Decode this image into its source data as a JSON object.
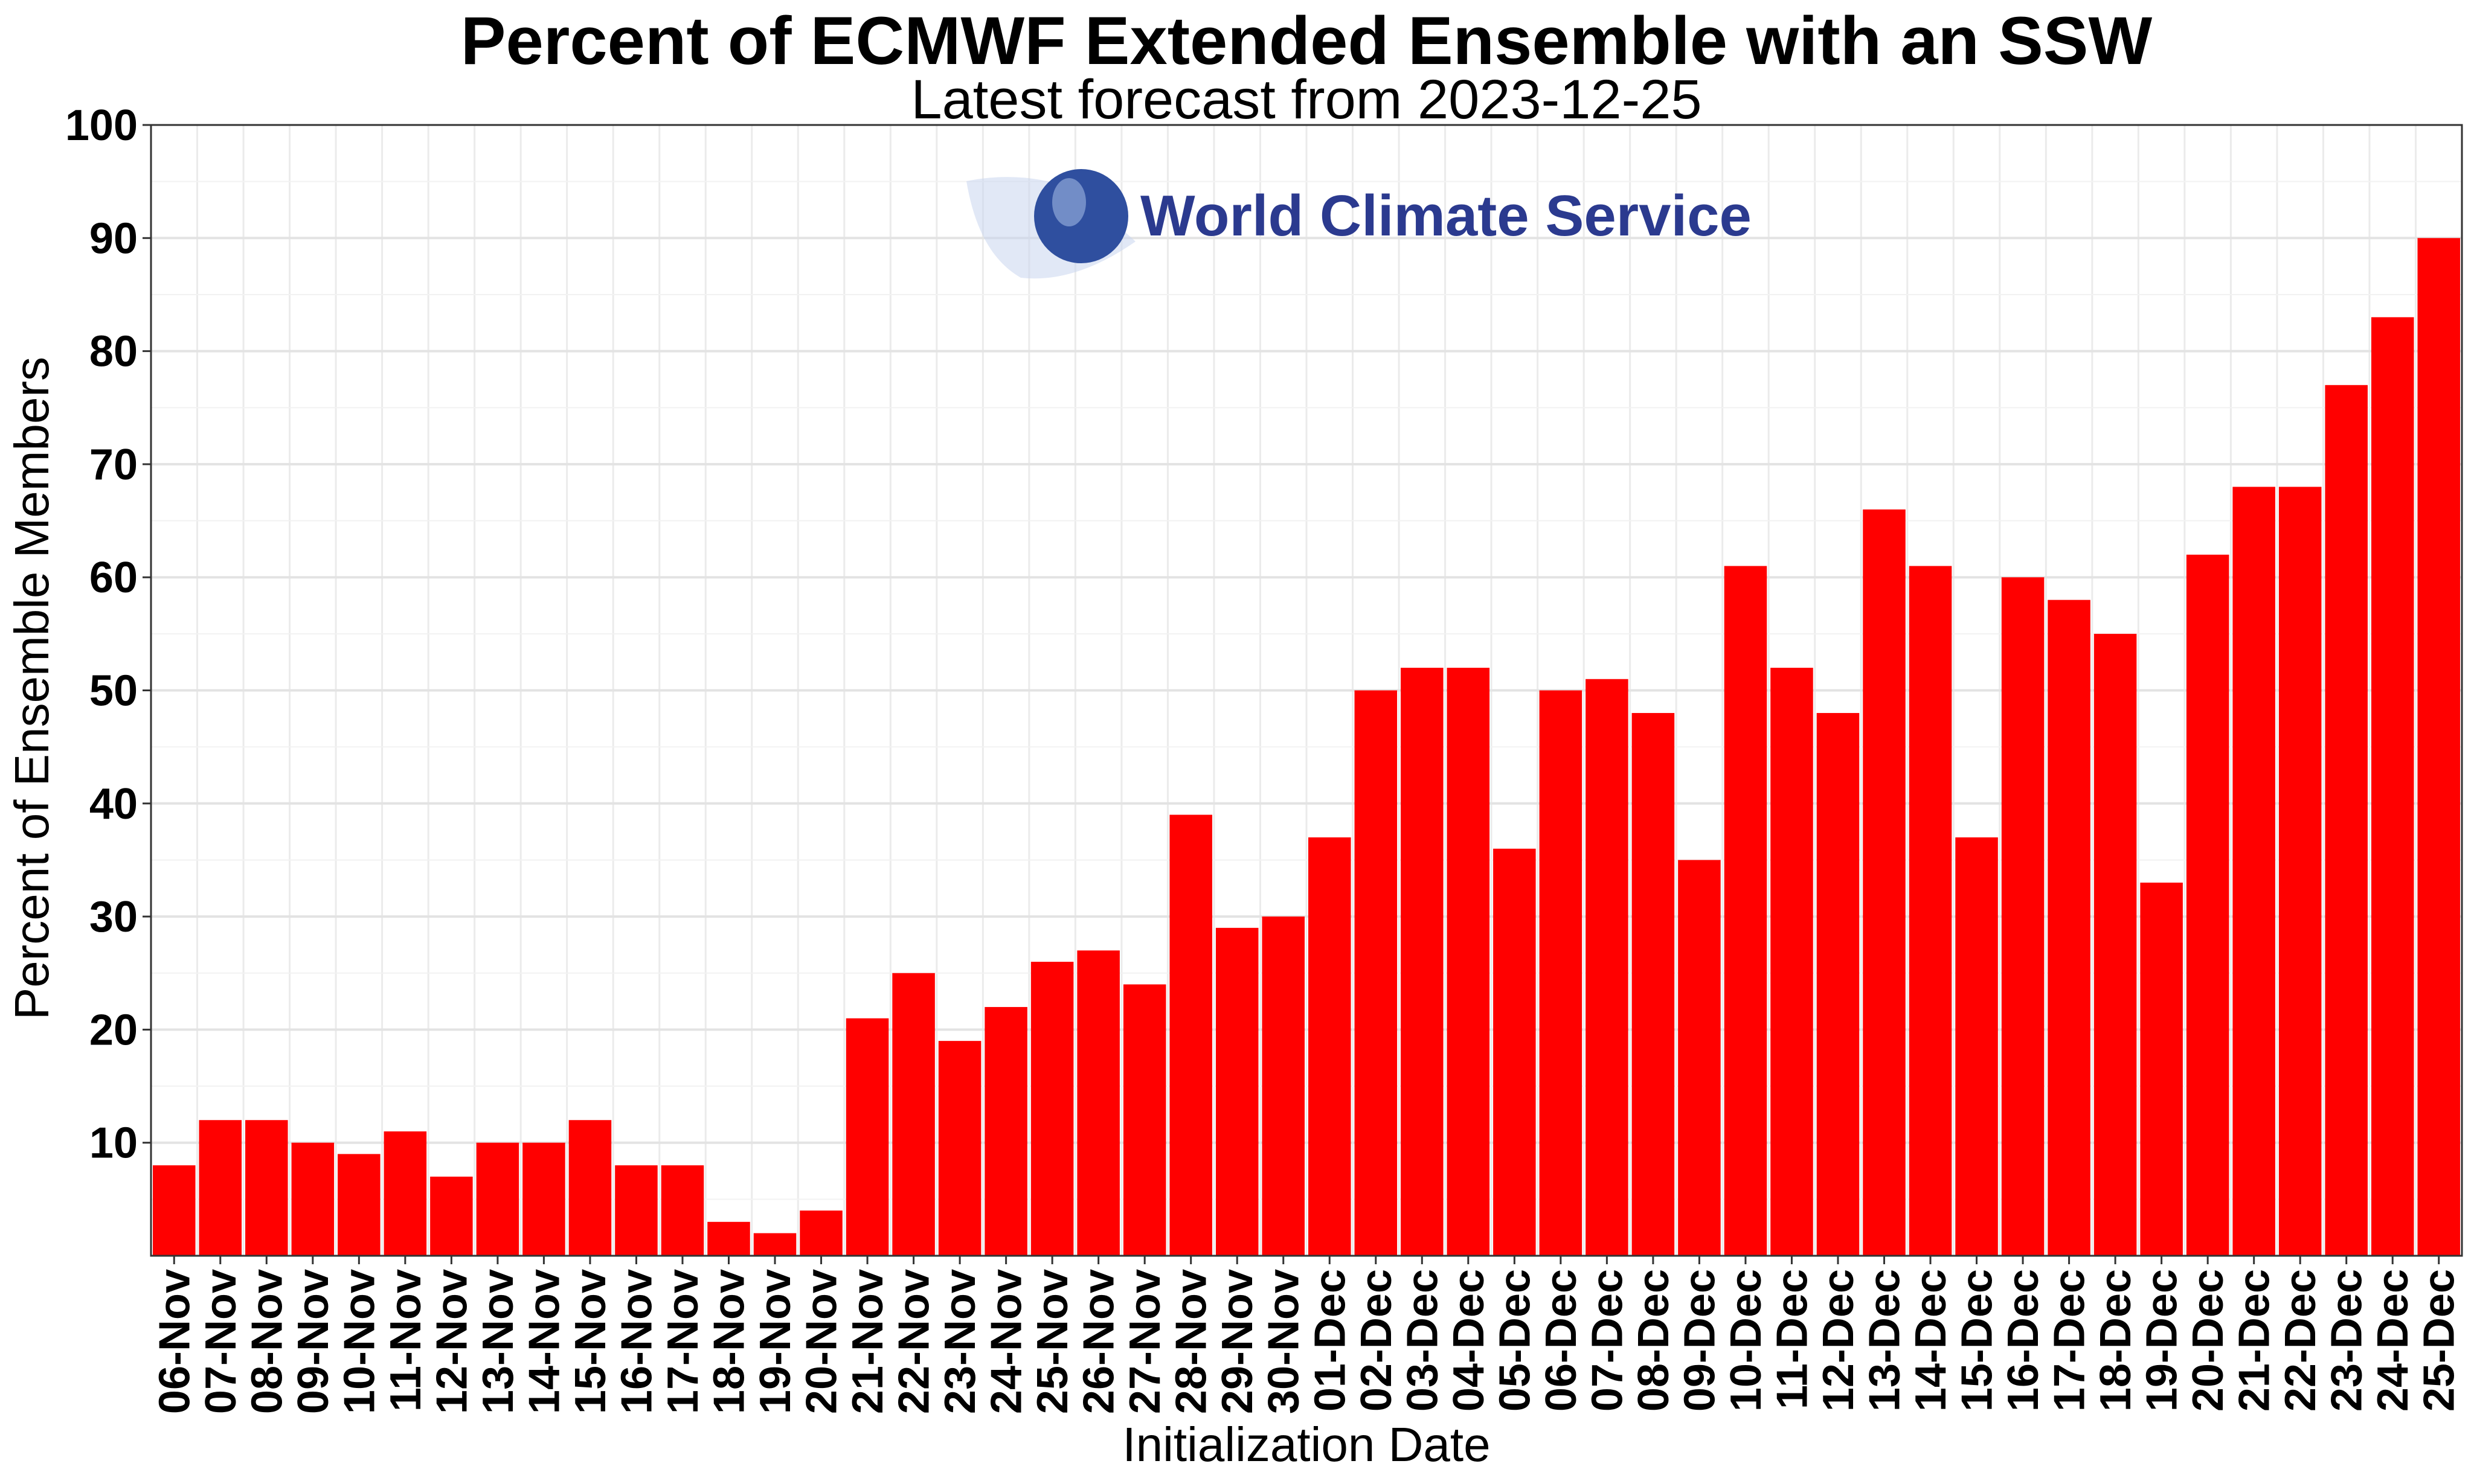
{
  "chart_data": {
    "type": "bar",
    "title": "Percent of ECMWF Extended Ensemble with an SSW",
    "subtitle": "Latest forecast from 2023-12-25",
    "xlabel": "Initialization Date",
    "ylabel": "Percent of Ensemble Members",
    "ylim": [
      0,
      100
    ],
    "yticks": [
      10,
      20,
      30,
      40,
      50,
      60,
      70,
      80,
      90,
      100
    ],
    "grid": true,
    "bar_color": "#ff0000",
    "categories": [
      "06-Nov",
      "07-Nov",
      "08-Nov",
      "09-Nov",
      "10-Nov",
      "11-Nov",
      "12-Nov",
      "13-Nov",
      "14-Nov",
      "15-Nov",
      "16-Nov",
      "17-Nov",
      "18-Nov",
      "19-Nov",
      "20-Nov",
      "21-Nov",
      "22-Nov",
      "23-Nov",
      "24-Nov",
      "25-Nov",
      "26-Nov",
      "27-Nov",
      "28-Nov",
      "29-Nov",
      "30-Nov",
      "01-Dec",
      "02-Dec",
      "03-Dec",
      "04-Dec",
      "05-Dec",
      "06-Dec",
      "07-Dec",
      "08-Dec",
      "09-Dec",
      "10-Dec",
      "11-Dec",
      "12-Dec",
      "13-Dec",
      "14-Dec",
      "15-Dec",
      "16-Dec",
      "17-Dec",
      "18-Dec",
      "19-Dec",
      "20-Dec",
      "21-Dec",
      "22-Dec",
      "23-Dec",
      "24-Dec",
      "25-Dec"
    ],
    "values": [
      8,
      12,
      12,
      10,
      9,
      11,
      7,
      10,
      10,
      12,
      8,
      8,
      3,
      2,
      4,
      21,
      25,
      19,
      22,
      26,
      27,
      24,
      39,
      29,
      30,
      37,
      50,
      52,
      52,
      36,
      50,
      51,
      48,
      35,
      61,
      52,
      48,
      66,
      61,
      37,
      60,
      58,
      55,
      33,
      62,
      68,
      68,
      77,
      83,
      90
    ]
  },
  "logo": {
    "text": "World Climate Service",
    "text_color": "#2b3a8f",
    "globe_color": "#2f4f9f"
  }
}
